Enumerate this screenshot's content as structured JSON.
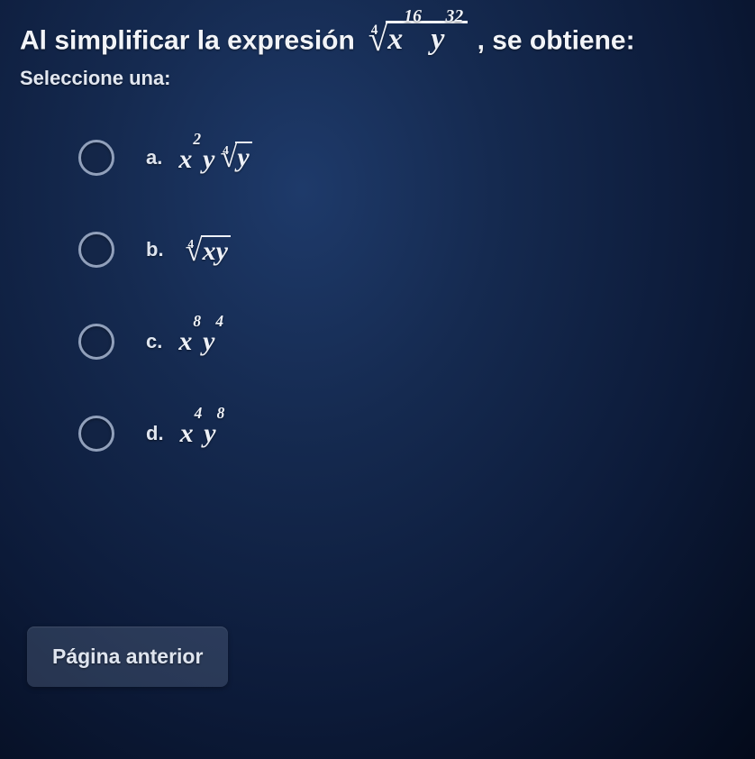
{
  "colors": {
    "bg_center": "#1e3a6a",
    "bg_outer": "#030a1a",
    "text": "#e8ecf3",
    "radio_border": "#91a0bb",
    "button_bg": "rgba(120,135,165,0.28)"
  },
  "question": {
    "prefix": "Al simplificar la expresión ",
    "expression": {
      "root_index": "4",
      "radicand_terms": [
        {
          "base": "x",
          "exp": "16"
        },
        {
          "base": "y",
          "exp": "32"
        }
      ]
    },
    "suffix": " , se obtiene:",
    "select_label": "Seleccione una:"
  },
  "options": [
    {
      "key": "a",
      "label": "a.",
      "math": {
        "leading": [
          {
            "base": "x",
            "exp": "2"
          },
          {
            "base": "y",
            "exp": ""
          }
        ],
        "radical": {
          "index": "4",
          "radicand": [
            {
              "base": "y",
              "exp": ""
            }
          ]
        }
      }
    },
    {
      "key": "b",
      "label": "b.",
      "math": {
        "leading": [],
        "radical": {
          "index": "4",
          "radicand": [
            {
              "base": "x",
              "exp": ""
            },
            {
              "base": "y",
              "exp": ""
            }
          ]
        }
      }
    },
    {
      "key": "c",
      "label": "c.",
      "math": {
        "leading": [
          {
            "base": "x",
            "exp": "8"
          },
          {
            "base": "y",
            "exp": "4"
          }
        ],
        "radical": null
      }
    },
    {
      "key": "d",
      "label": "d.",
      "math": {
        "leading": [
          {
            "base": "x",
            "exp": "4"
          },
          {
            "base": "y",
            "exp": "8"
          }
        ],
        "radical": null
      }
    }
  ],
  "footer": {
    "prev_button": "Página anterior"
  }
}
